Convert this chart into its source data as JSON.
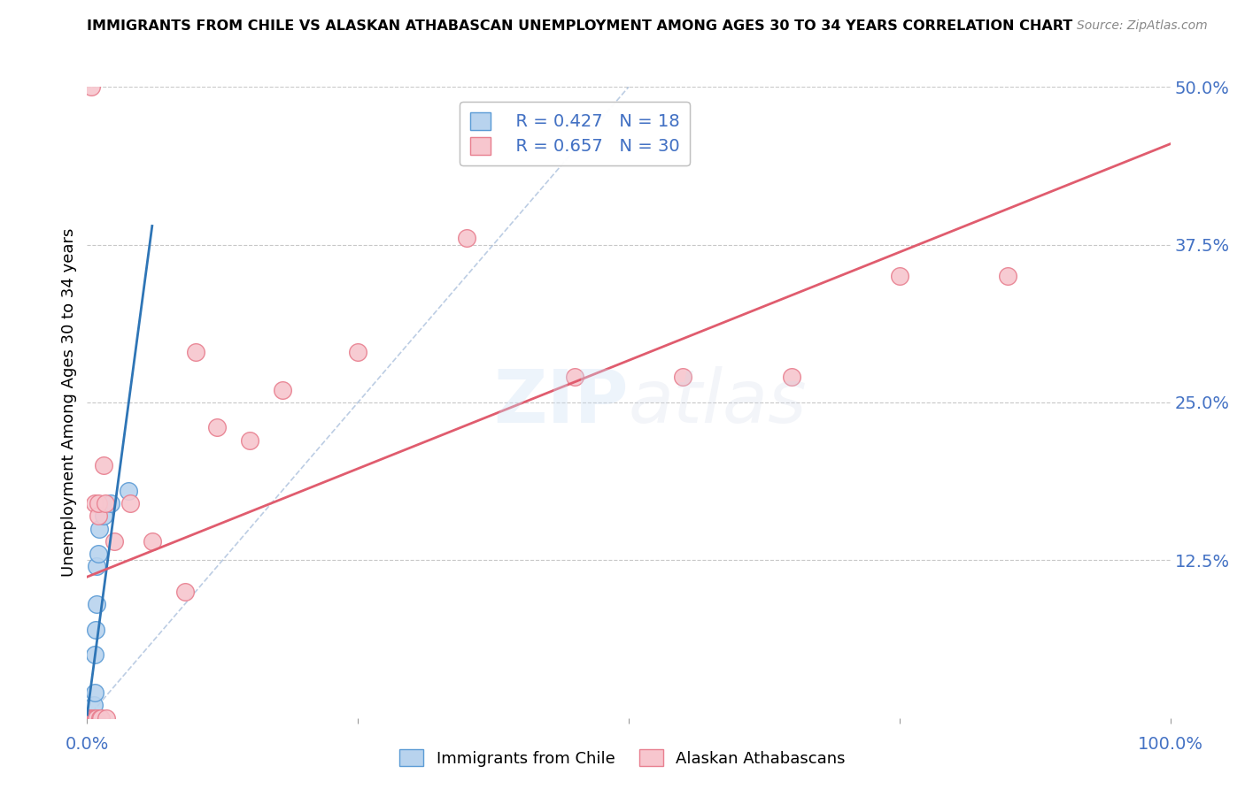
{
  "title": "IMMIGRANTS FROM CHILE VS ALASKAN ATHABASCAN UNEMPLOYMENT AMONG AGES 30 TO 34 YEARS CORRELATION CHART",
  "source": "Source: ZipAtlas.com",
  "ylabel": "Unemployment Among Ages 30 to 34 years",
  "xlim": [
    0,
    1.0
  ],
  "ylim": [
    -0.02,
    0.52
  ],
  "plot_ylim": [
    0,
    0.5
  ],
  "xticks": [
    0.0,
    0.25,
    0.5,
    0.75,
    1.0
  ],
  "yticks_right": [
    0.0,
    0.125,
    0.25,
    0.375,
    0.5
  ],
  "yticklabels_right": [
    "",
    "12.5%",
    "25.0%",
    "37.5%",
    "50.0%"
  ],
  "R_chile": 0.427,
  "N_chile": 18,
  "R_athabascan": 0.657,
  "N_athabascan": 30,
  "chile_color": "#b8d3ee",
  "chile_edge_color": "#5b9bd5",
  "athabascan_color": "#f7c6ce",
  "athabascan_edge_color": "#e87f8f",
  "chile_line_color": "#2e75b6",
  "athabascan_line_color": "#e05c6e",
  "diagonal_color": "#a0b8d8",
  "grid_color": "#c8c8c8",
  "background_color": "#ffffff",
  "chile_x": [
    0.002,
    0.003,
    0.004,
    0.004,
    0.005,
    0.005,
    0.006,
    0.006,
    0.007,
    0.007,
    0.008,
    0.009,
    0.009,
    0.01,
    0.011,
    0.015,
    0.022,
    0.038
  ],
  "chile_y": [
    0.0,
    0.0,
    0.0,
    0.0,
    0.0,
    0.0,
    0.0,
    0.01,
    0.02,
    0.05,
    0.07,
    0.09,
    0.12,
    0.13,
    0.15,
    0.16,
    0.17,
    0.18
  ],
  "athabascan_x": [
    0.003,
    0.004,
    0.005,
    0.006,
    0.007,
    0.008,
    0.008,
    0.009,
    0.01,
    0.01,
    0.012,
    0.013,
    0.015,
    0.017,
    0.018,
    0.025,
    0.04,
    0.06,
    0.09,
    0.1,
    0.12,
    0.15,
    0.18,
    0.25,
    0.35,
    0.45,
    0.55,
    0.65,
    0.75,
    0.85
  ],
  "athabascan_y": [
    0.0,
    0.0,
    0.0,
    0.0,
    0.17,
    0.0,
    0.0,
    0.0,
    0.16,
    0.17,
    0.0,
    0.0,
    0.2,
    0.17,
    0.0,
    0.14,
    0.17,
    0.14,
    0.1,
    0.29,
    0.23,
    0.22,
    0.26,
    0.29,
    0.38,
    0.27,
    0.27,
    0.27,
    0.35,
    0.35
  ],
  "athabascan_outlier_x": [
    0.004
  ],
  "athabascan_outlier_y": [
    0.5
  ],
  "marker_size": 200
}
